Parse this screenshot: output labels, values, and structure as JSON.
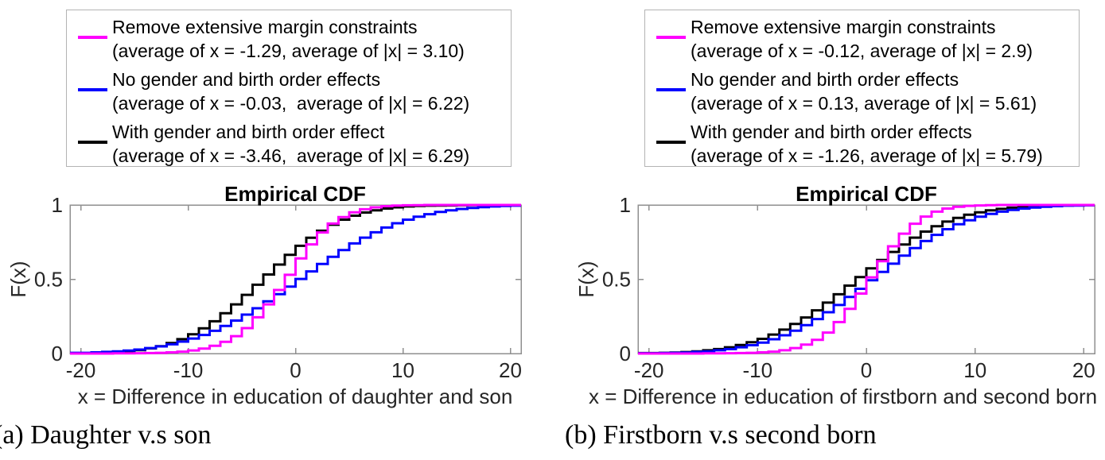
{
  "colors": {
    "axis": "#8f8f8f",
    "tick_text": "#262626",
    "magenta": "#FF00FF",
    "blue": "#0000FF",
    "black": "#000000",
    "legend_border": "#b3b3b3"
  },
  "legends": [
    {
      "side": "left",
      "entries": [
        {
          "color": "#FF00FF",
          "line1": "Remove extensive margin constraints",
          "line2": "(average of x = -1.29, average of |x| = 3.10)"
        },
        {
          "color": "#0000FF",
          "line1": "No gender and birth order effects",
          "line2": "(average of x = -0.03,  average of |x| = 6.22)"
        },
        {
          "color": "#000000",
          "line1": "With gender and birth order effect",
          "line2": "(average of x = -3.46,  average of |x| = 6.29)"
        }
      ]
    },
    {
      "side": "right",
      "entries": [
        {
          "color": "#FF00FF",
          "line1": "Remove extensive margin constraints",
          "line2": "(average of x = -0.12, average of |x| = 2.9)"
        },
        {
          "color": "#0000FF",
          "line1": "No gender and birth order effects",
          "line2": "(average of x = 0.13, average of |x| = 5.61)"
        },
        {
          "color": "#000000",
          "line1": "With gender and birth order effects",
          "line2": "(average of x = -1.26, average of |x| = 5.79)"
        }
      ]
    }
  ],
  "chart_data": [
    {
      "type": "line",
      "subtype": "empirical-cdf-stairs",
      "title": "Empirical CDF",
      "xlabel": "x = Difference in education of daughter and son",
      "ylabel": "F(x)",
      "xlim": [
        -21,
        21
      ],
      "ylim": [
        0,
        1
      ],
      "xticks": [
        -20,
        -10,
        0,
        10,
        20
      ],
      "yticks": [
        0,
        0.5,
        1
      ],
      "grid": false,
      "legend_position": "outside-top",
      "x_start": -20,
      "x_step": 1,
      "series": [
        {
          "name": "With gender and birth order effect",
          "avg_x": -3.46,
          "avg_abs_x": 6.29,
          "color": "#000000",
          "values": [
            0.002,
            0.004,
            0.006,
            0.01,
            0.015,
            0.023,
            0.035,
            0.05,
            0.071,
            0.097,
            0.13,
            0.17,
            0.217,
            0.271,
            0.331,
            0.395,
            0.463,
            0.532,
            0.599,
            0.664,
            0.725,
            0.779,
            0.827,
            0.867,
            0.901,
            0.928,
            0.949,
            0.964,
            0.976,
            0.984,
            0.99,
            0.993,
            0.995,
            0.996,
            0.997,
            0.998,
            0.999,
            1,
            1,
            1,
            1
          ]
        },
        {
          "name": "No gender and birth order effects",
          "avg_x": -0.03,
          "avg_abs_x": 6.22,
          "color": "#0000FF",
          "values": [
            0.005,
            0.008,
            0.011,
            0.015,
            0.02,
            0.027,
            0.037,
            0.048,
            0.062,
            0.08,
            0.101,
            0.125,
            0.153,
            0.186,
            0.222,
            0.262,
            0.305,
            0.352,
            0.4,
            0.451,
            0.502,
            0.553,
            0.603,
            0.651,
            0.697,
            0.741,
            0.78,
            0.816,
            0.848,
            0.877,
            0.901,
            0.921,
            0.938,
            0.953,
            0.964,
            0.973,
            0.98,
            0.985,
            0.99,
            0.993,
            0.995
          ]
        },
        {
          "name": "Remove extensive margin constraints",
          "avg_x": -1.29,
          "avg_abs_x": 3.1,
          "color": "#FF00FF",
          "values": [
            0,
            0,
            0,
            0.001,
            0.001,
            0.002,
            0.003,
            0.005,
            0.008,
            0.013,
            0.021,
            0.033,
            0.052,
            0.079,
            0.117,
            0.171,
            0.244,
            0.331,
            0.428,
            0.53,
            0.64,
            0.735,
            0.815,
            0.875,
            0.918,
            0.95,
            0.971,
            0.984,
            0.992,
            0.996,
            0.998,
            0.999,
            1,
            1,
            1,
            1,
            1,
            1,
            1,
            1,
            1
          ]
        }
      ]
    },
    {
      "type": "line",
      "subtype": "empirical-cdf-stairs",
      "title": "Empirical CDF",
      "xlabel": "x = Difference in education of firstborn and second born",
      "ylabel": "F(x)",
      "xlim": [
        -21,
        21
      ],
      "ylim": [
        0,
        1
      ],
      "xticks": [
        -20,
        -10,
        0,
        10,
        20
      ],
      "yticks": [
        0,
        0.5,
        1
      ],
      "grid": false,
      "legend_position": "outside-top",
      "x_start": -20,
      "x_step": 1,
      "series": [
        {
          "name": "With gender and birth order effects",
          "avg_x": -1.26,
          "avg_abs_x": 5.79,
          "color": "#000000",
          "values": [
            0.003,
            0.005,
            0.007,
            0.01,
            0.015,
            0.022,
            0.03,
            0.042,
            0.057,
            0.076,
            0.099,
            0.128,
            0.161,
            0.199,
            0.243,
            0.291,
            0.343,
            0.399,
            0.457,
            0.515,
            0.573,
            0.63,
            0.684,
            0.734,
            0.78,
            0.821,
            0.857,
            0.888,
            0.913,
            0.934,
            0.951,
            0.964,
            0.974,
            0.982,
            0.988,
            0.992,
            0.994,
            0.996,
            0.997,
            0.998,
            0.999
          ]
        },
        {
          "name": "No gender and birth order effects",
          "avg_x": 0.13,
          "avg_abs_x": 5.61,
          "color": "#0000FF",
          "values": [
            0.002,
            0.003,
            0.005,
            0.007,
            0.011,
            0.015,
            0.022,
            0.03,
            0.042,
            0.056,
            0.074,
            0.096,
            0.123,
            0.154,
            0.191,
            0.232,
            0.278,
            0.327,
            0.381,
            0.436,
            0.493,
            0.549,
            0.605,
            0.659,
            0.71,
            0.757,
            0.799,
            0.837,
            0.87,
            0.897,
            0.921,
            0.94,
            0.955,
            0.967,
            0.976,
            0.983,
            0.988,
            0.992,
            0.995,
            0.996,
            0.998
          ]
        },
        {
          "name": "Remove extensive margin constraints",
          "avg_x": -0.12,
          "avg_abs_x": 2.9,
          "color": "#FF00FF",
          "values": [
            0,
            0,
            0,
            0,
            0,
            0.001,
            0.001,
            0.002,
            0.003,
            0.005,
            0.008,
            0.013,
            0.022,
            0.037,
            0.06,
            0.092,
            0.141,
            0.212,
            0.301,
            0.404,
            0.513,
            0.622,
            0.722,
            0.807,
            0.874,
            0.922,
            0.955,
            0.976,
            0.988,
            0.994,
            0.997,
            0.999,
            1,
            1,
            1,
            1,
            1,
            1,
            1,
            1,
            1
          ]
        }
      ]
    }
  ],
  "captions": [
    {
      "label": "(a) Daughter v.s son"
    },
    {
      "label": "(b) Firstborn v.s second born"
    }
  ]
}
